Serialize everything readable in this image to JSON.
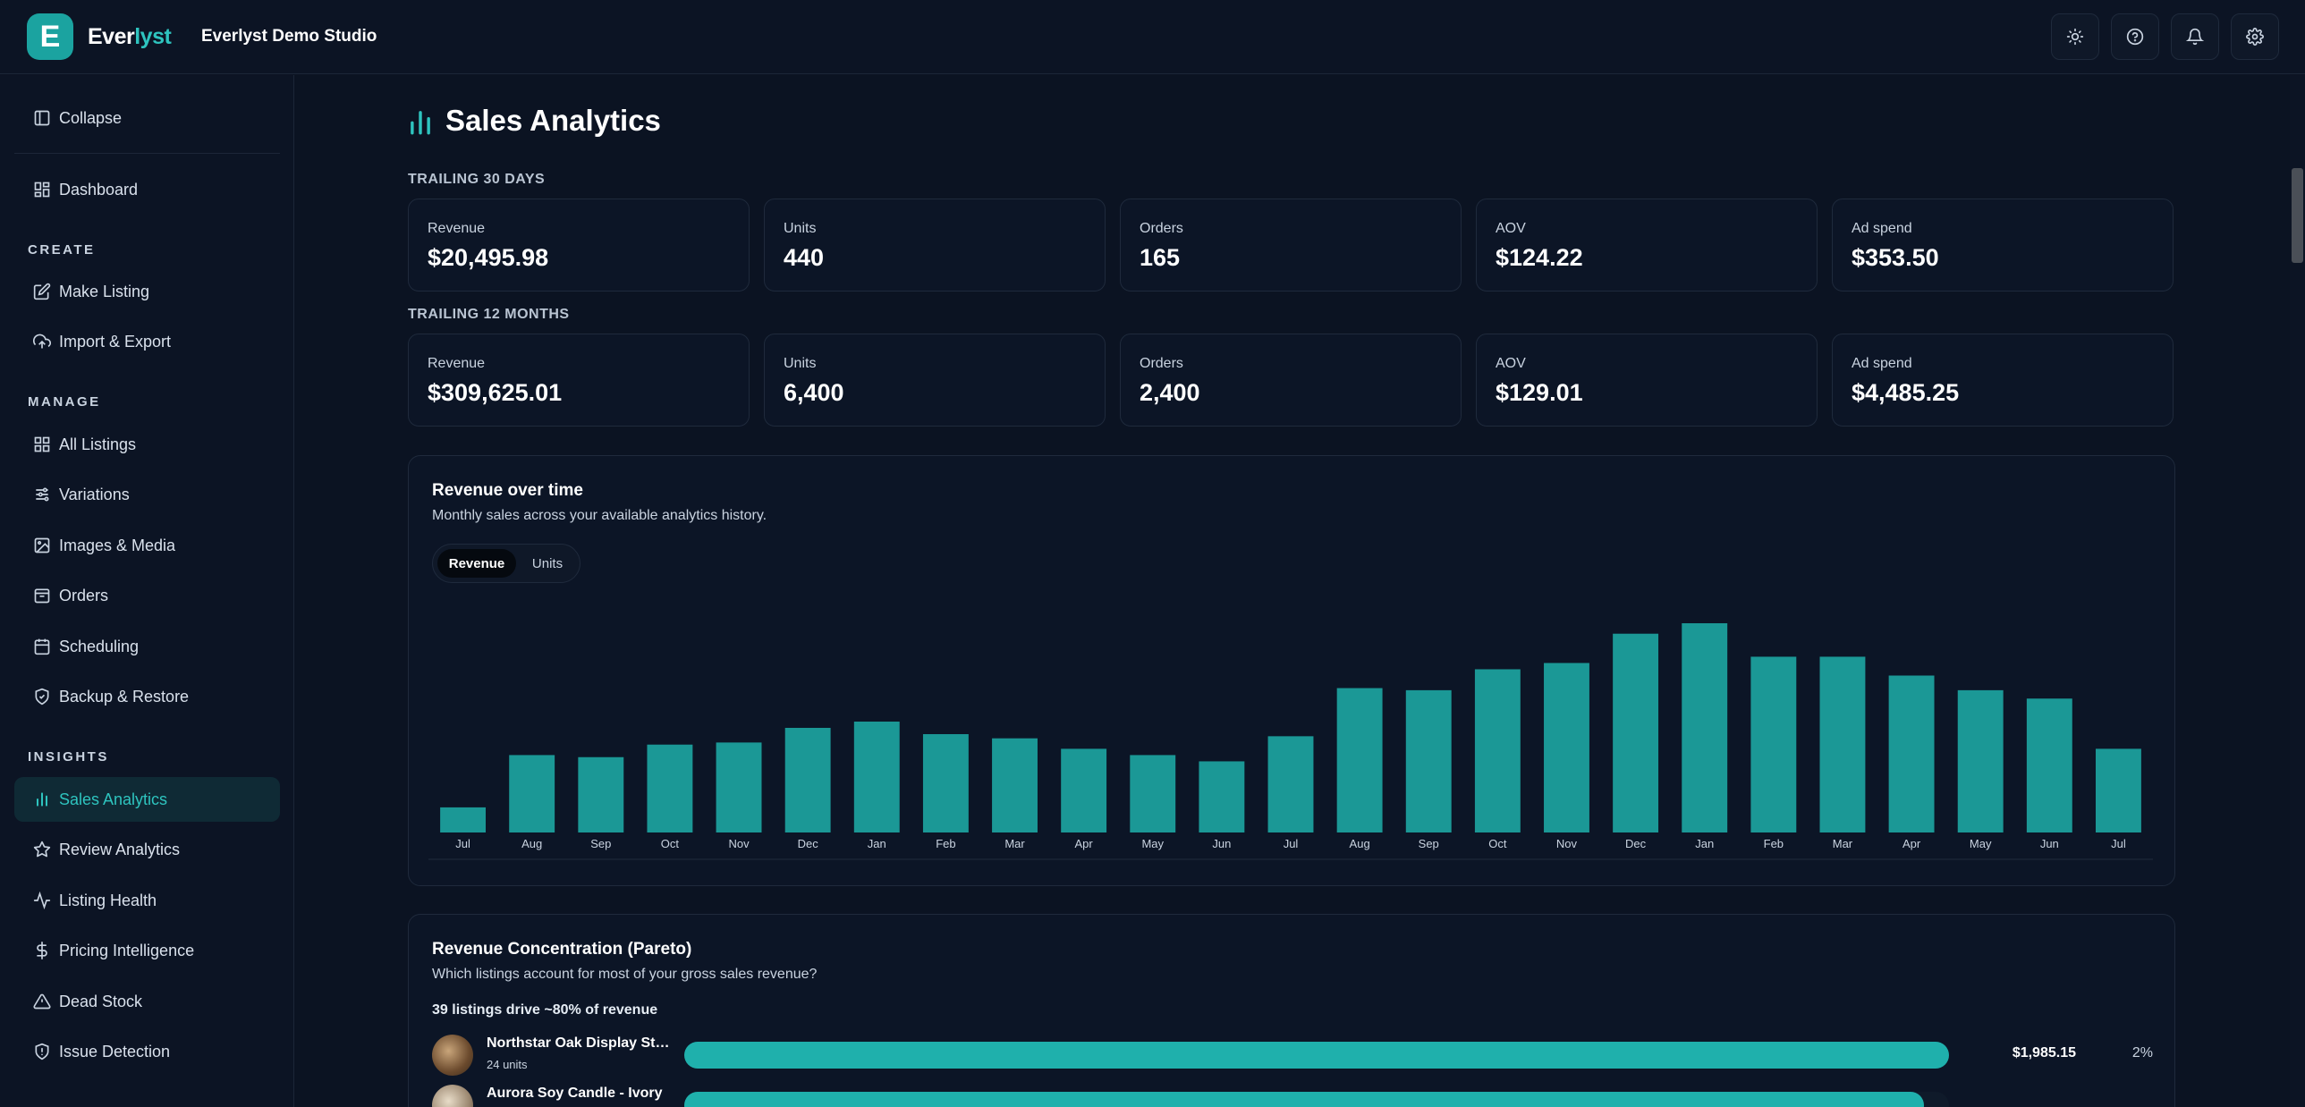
{
  "app": {
    "brand_prefix": "Ever",
    "brand_accent": "lyst",
    "logo_letter": "E",
    "studio_name": "Everlyst Demo Studio",
    "accent_color": "#1ba3a0"
  },
  "topbar": {
    "buttons": [
      {
        "name": "theme-toggle",
        "icon": "sun-icon"
      },
      {
        "name": "help",
        "icon": "help-circle-icon"
      },
      {
        "name": "notifications",
        "icon": "bell-icon"
      },
      {
        "name": "settings",
        "icon": "gear-icon"
      }
    ]
  },
  "sidebar": {
    "collapse_label": "Collapse",
    "dashboard_label": "Dashboard",
    "sections": {
      "create": "CREATE",
      "manage": "MANAGE",
      "insights": "INSIGHTS"
    },
    "create_items": [
      "Make Listing",
      "Import & Export"
    ],
    "manage_items": [
      "All Listings",
      "Variations",
      "Images & Media",
      "Orders",
      "Scheduling",
      "Backup & Restore"
    ],
    "insights_items": [
      "Sales Analytics",
      "Review Analytics",
      "Listing Health",
      "Pricing Intelligence",
      "Dead Stock",
      "Issue Detection"
    ],
    "active_item": "Sales Analytics"
  },
  "page": {
    "title": "Sales Analytics",
    "trailing_30": {
      "label": "TRAILING 30 DAYS",
      "stats": [
        {
          "label": "Revenue",
          "value": "$20,495.98"
        },
        {
          "label": "Units",
          "value": "440"
        },
        {
          "label": "Orders",
          "value": "165"
        },
        {
          "label": "AOV",
          "value": "$124.22"
        },
        {
          "label": "Ad spend",
          "value": "$353.50"
        }
      ]
    },
    "trailing_12": {
      "label": "TRAILING 12 MONTHS",
      "stats": [
        {
          "label": "Revenue",
          "value": "$309,625.01"
        },
        {
          "label": "Units",
          "value": "6,400"
        },
        {
          "label": "Orders",
          "value": "2,400"
        },
        {
          "label": "AOV",
          "value": "$129.01"
        },
        {
          "label": "Ad spend",
          "value": "$4,485.25"
        }
      ]
    },
    "revenue_chart": {
      "title": "Revenue over time",
      "subtitle": "Monthly sales across your available analytics history.",
      "toggle": {
        "active": "Revenue",
        "inactive": "Units"
      }
    },
    "pareto": {
      "title": "Revenue Concentration (Pareto)",
      "subtitle": "Which listings account for most of your gross sales revenue?",
      "summary": "39 listings drive ~80% of revenue",
      "rows": [
        {
          "name": "Northstar Oak Display Stan...",
          "units": "24 units",
          "amount": "$1,985.15",
          "pct": "2%",
          "fill": 1.0
        },
        {
          "name": "Aurora Soy Candle - Ivory",
          "units": "",
          "amount": "",
          "pct": "",
          "fill": 0.98
        }
      ]
    }
  },
  "chart_data": {
    "type": "bar",
    "title": "Revenue over time",
    "categories": [
      "Jul",
      "Aug",
      "Sep",
      "Oct",
      "Nov",
      "Dec",
      "Jan",
      "Feb",
      "Mar",
      "Apr",
      "May",
      "Jun",
      "Jul",
      "Aug",
      "Sep",
      "Oct",
      "Nov",
      "Dec",
      "Jan",
      "Feb",
      "Mar",
      "Apr",
      "May",
      "Jun",
      "Jul"
    ],
    "values": [
      12,
      37,
      36,
      42,
      43,
      50,
      53,
      47,
      45,
      40,
      37,
      34,
      46,
      69,
      68,
      78,
      81,
      95,
      100,
      84,
      84,
      75,
      68,
      64,
      40
    ],
    "ylim": [
      0,
      100
    ],
    "color": "#1b9896",
    "grid": false,
    "legend": "none"
  }
}
